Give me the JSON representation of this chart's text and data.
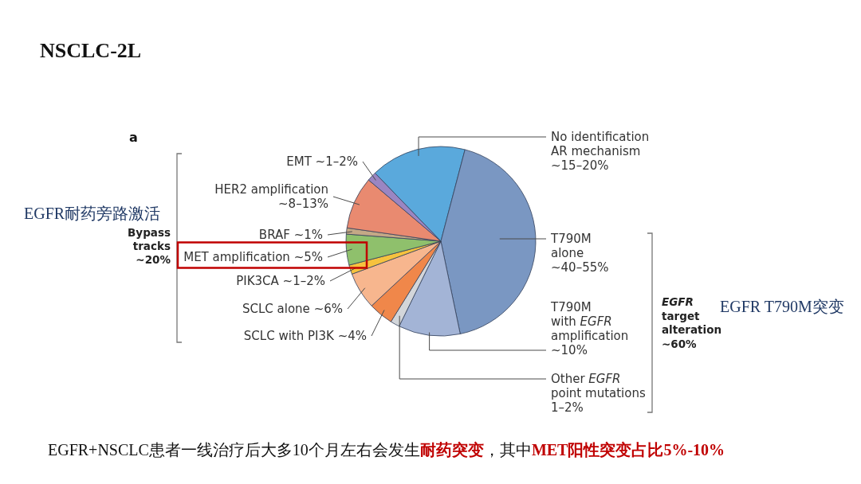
{
  "chart_data": {
    "type": "pie",
    "title": "NSCLC-2L",
    "categories": [
      "No identification AR mechanism",
      "T790M alone",
      "T790M with EGFR amplification",
      "Other EGFR point mutations",
      "SCLC with PI3K",
      "SCLC alone",
      "PIK3CA",
      "MET amplification",
      "BRAF",
      "HER2 amplification",
      "EMT"
    ],
    "values": [
      15.5,
      40.5,
      10,
      1.5,
      4,
      6,
      1.5,
      5,
      1,
      8.5,
      1.5
    ],
    "value_labels": [
      "~15–20%",
      "~40–55%",
      "~10%",
      "1–2%",
      "~4%",
      "~6%",
      "~1–2%",
      "~5%",
      "~1%",
      "~8–13%",
      "~1–2%"
    ],
    "colors": [
      "#5aa9dc",
      "#7a97c2",
      "#a3b4d6",
      "#d3d6da",
      "#f0874a",
      "#f7b68e",
      "#f6c23e",
      "#8fc06c",
      "#c4a886",
      "#e98a70",
      "#9a86c2"
    ],
    "annotations": [
      "a",
      "Bypass tracks ~20%",
      "EGFR耐药旁路激活",
      "EGFR target alteration ~60%",
      "EGFR T790M突变",
      "EGFR+NSCLC患者一线治疗后大多10个月左右会发生",
      "耐药突变",
      "，其中",
      "MET阳性突变占比5%-10%"
    ]
  }
}
